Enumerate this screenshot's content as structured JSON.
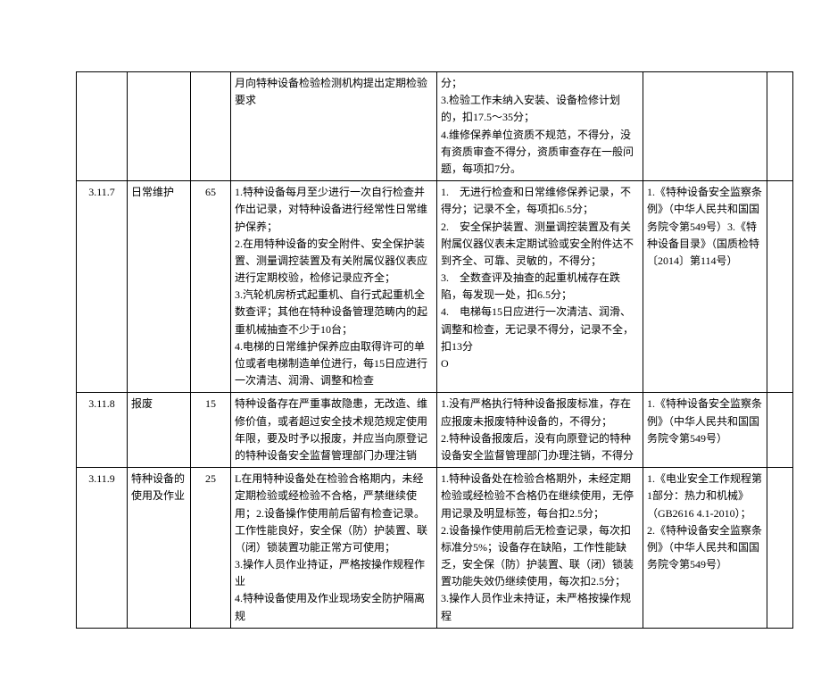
{
  "rows": [
    {
      "num": "",
      "name": "",
      "score": "",
      "req": "月向特种设备检验检测机构提出定期检验要求",
      "ded": "分；\n3.检验工作未纳入安装、设备检修计划的，扣17.5～35分；\n4.维修保养单位资质不规范，不得分，没有资质审查不得分，资质审查存在一般问题，每项扣7分。",
      "ref": "",
      "last": ""
    },
    {
      "num": "3.11.7",
      "name": "日常维护",
      "score": "65",
      "req": "1.特种设备每月至少进行一次自行检查并作出记录，对特种设备进行经常性日常维护保养；\n2.在用特种设备的安全附件、安全保护装置、测量调控装置及有关附属仪器仪表应进行定期校验，检修记录应齐全；\n3.汽轮机房桥式起重机、自行式起重机全数查评；其他在特种设备管理范畴内的起重机械抽查不少于10台；\n4.电梯的日常维护保养应由取得许可的单位或者电梯制造单位进行，每15日应进行一次清洁、润滑、调整和检查",
      "ded": "1.　无进行检查和日常维修保养记录，不得分；记录不全，每项扣6.5分；\n2.　安全保护装置、测量调控装置及有关附属仪器仪表未定期试验或安全附件达不到齐全、可靠、灵敏的，不得分；\n3.　全数查评及抽查的起重机械存在跌陷，每发现一处，扣6.5分；\n4.　电梯每15日应进行一次清洁、润滑、调整和检查，无记录不得分，记录不全，扣13分\nO",
      "ref": "1.《特种设备安全监察条例》（中华人民共和国国务院令第549号）3.《特种设备目录》（国质检特〔2014〕第114号）",
      "last": ""
    },
    {
      "num": "3.11.8",
      "name": "报废",
      "score": "15",
      "req": "特种设备存在严重事故隐患，无改造、维修价值，或者超过安全技术规范规定使用年限，要及时予以报废，并应当向原登记的特种设备安全监督管理部门办理注销",
      "ded": "1.没有严格执行特种设备报废标准，存在应报废未报废特种设备的，不得分；\n2.特种设备报废后，没有向原登记的特种设备安全监督管理部门办理注销，不得分",
      "ref": "1.《特种设备安全监察条例》（中华人民共和国国务院令第549号）",
      "last": ""
    },
    {
      "num": "3.11.9",
      "name": "特种设备的使用及作业",
      "score": "25",
      "req": "L在用特种设备处在检验合格期内，未经定期检验或经检验不合格，严禁继续使用；2.设备操作使用前后留有检查记录。工作性能良好，安全保（防）护装置、联（闭）锁装置功能正常方可使用；\n3.操作人员作业持证，严格按操作规程作业\n4.特种设备使用及作业现场安全防护隔离规",
      "ded": "1.特种设备处在检验合格期外，未经定期检验或经检验不合格仍在继续使用，无停用记录及明显标签，每台扣2.5分；\n2.设备操作使用前后无检查记录，每次扣标准分5%；设备存在缺陷，工作性能缺乏，安全保（防）护装置、联（闭）锁装置功能失效仍继续使用，每次扣2.5分；\n3.操作人员作业未持证，未严格按操作规程",
      "ref": "1.《电业安全工作规程第1部分：热力和机械》（GB2616 4.1-2010）；\n2.《特种设备安全监察条例》（中华人民共和国国务院令第549号）",
      "last": ""
    }
  ]
}
